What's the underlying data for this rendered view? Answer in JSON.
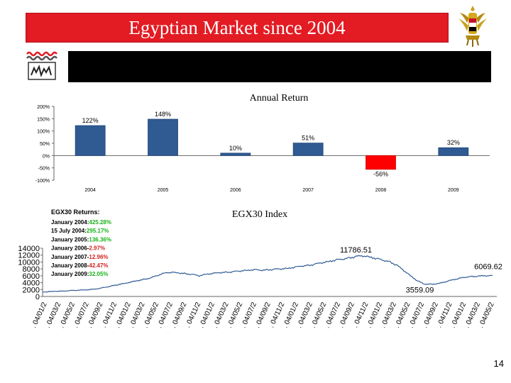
{
  "slide": {
    "title": "Egyptian Market since 2004",
    "page_number": "14",
    "colors": {
      "title_bg": "#e31b23",
      "bar_positive": "#2f5a92",
      "bar_negative": "#ff0000",
      "line": "#2f5a92",
      "returns_positive": "#17b317",
      "returns_negative": "#d42020"
    }
  },
  "chart_data": [
    {
      "type": "bar",
      "title": "Annual Return",
      "categories": [
        "2004",
        "2005",
        "2006",
        "2007",
        "2008",
        "2009"
      ],
      "values": [
        122,
        148,
        10,
        51,
        -56,
        32
      ],
      "data_labels": [
        "122%",
        "148%",
        "10%",
        "51%",
        "-56%",
        "32%"
      ],
      "ylim": [
        -100,
        200
      ],
      "yticks": [
        "200%",
        "150%",
        "100%",
        "50%",
        "0%",
        "-50%",
        "-100%"
      ],
      "ytick_values": [
        200,
        150,
        100,
        50,
        0,
        -50,
        -100
      ],
      "xlabel": "",
      "ylabel": ""
    },
    {
      "type": "line",
      "title": "EGX30 Index",
      "ylim": [
        0,
        14000
      ],
      "yticks": [
        "14000",
        "12000",
        "10000",
        "8000",
        "6000",
        "4000",
        "2000",
        "0"
      ],
      "ytick_values": [
        14000,
        12000,
        10000,
        8000,
        6000,
        4000,
        2000,
        0
      ],
      "xtick_labels": [
        "04/01/2",
        "04/03/2",
        "04/05/2",
        "04/07/2",
        "04/09/2",
        "04/11/2",
        "04/01/2",
        "04/03/2",
        "04/05/2",
        "04/07/2",
        "04/09/2",
        "04/11/2",
        "04/01/2",
        "04/03/2",
        "04/05/2",
        "04/07/2",
        "04/09/2",
        "04/11/2",
        "04/01/2",
        "04/03/2",
        "04/05/2",
        "04/07/2",
        "04/09/2",
        "04/11/2",
        "04/01/2",
        "04/03/2",
        "04/05/2",
        "04/07/2",
        "04/09/2",
        "04/11/2",
        "04/01/2",
        "04/03/2",
        "04/05/2"
      ],
      "x": [
        0,
        1,
        2,
        3,
        4,
        5,
        6,
        7,
        8,
        9,
        10,
        11,
        12,
        13,
        14,
        15,
        16,
        17,
        18,
        19,
        20,
        21,
        22,
        23,
        24,
        25,
        26,
        27,
        28,
        29,
        30,
        31,
        32,
        33,
        34,
        35,
        36,
        37,
        38,
        39,
        40,
        41,
        42,
        43,
        44,
        45,
        46,
        47,
        48,
        49,
        50,
        51,
        52,
        53,
        54,
        55,
        56,
        57,
        58,
        59,
        60,
        61,
        62,
        63,
        64,
        65,
        66
      ],
      "values": [
        1300,
        1400,
        1500,
        1550,
        1700,
        1800,
        1900,
        2000,
        2200,
        2600,
        3000,
        3400,
        3800,
        4200,
        4600,
        5000,
        5500,
        6200,
        6900,
        7000,
        6800,
        6600,
        6400,
        6000,
        6500,
        6700,
        6900,
        7000,
        7200,
        7400,
        7600,
        7800,
        7600,
        7700,
        7900,
        8000,
        8200,
        8500,
        8800,
        9000,
        9400,
        9800,
        10200,
        10600,
        10800,
        11200,
        11600,
        11786,
        11500,
        11000,
        10500,
        10000,
        9000,
        7500,
        6000,
        4500,
        3600,
        3559,
        3700,
        4200,
        4800,
        5200,
        5600,
        5800,
        5900,
        6000,
        6070
      ],
      "annotations": [
        {
          "text": "11786.51",
          "x": 47,
          "y": 11786.51
        },
        {
          "text": "6069.62",
          "x": 66,
          "y": 6069.62
        },
        {
          "text": "3559.09",
          "x": 57,
          "y": 3559.09
        }
      ],
      "returns_title": "EGX30 Returns:",
      "returns": [
        {
          "label": "January 2004:",
          "value": "425.28%",
          "sign": "positive"
        },
        {
          "label": "15 July 2004:",
          "value": "295.17%",
          "sign": "positive"
        },
        {
          "label": "January 2005:",
          "value": "136.36%",
          "sign": "positive"
        },
        {
          "label": "January 2006-",
          "value": "2.97%",
          "sign": "negative"
        },
        {
          "label": "January 2007-",
          "value": "12.96%",
          "sign": "negative"
        },
        {
          "label": "January 2008-",
          "value": "42.47%",
          "sign": "negative"
        },
        {
          "label": "January 2009:",
          "value": "32.05%",
          "sign": "positive"
        }
      ]
    }
  ]
}
